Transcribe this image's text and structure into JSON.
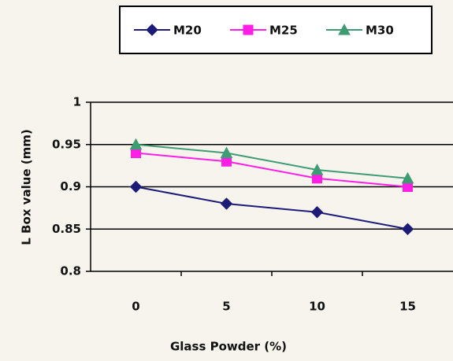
{
  "chart_data": {
    "type": "line",
    "x_label": "Glass Powder (%)",
    "y_label": "L Box value (mm)",
    "categories": [
      "0",
      "5",
      "10",
      "15"
    ],
    "series": [
      {
        "name": "M20",
        "color": "#1c1c78",
        "marker": "diamond",
        "values": [
          0.9,
          0.88,
          0.87,
          0.85
        ]
      },
      {
        "name": "M25",
        "color": "#ff1ee6",
        "marker": "square",
        "values": [
          0.94,
          0.93,
          0.91,
          0.9
        ]
      },
      {
        "name": "M30",
        "color": "#3f9c72",
        "marker": "triangle",
        "values": [
          0.95,
          0.94,
          0.92,
          0.91
        ]
      }
    ],
    "ylim": [
      0.8,
      1
    ],
    "yticks": [
      0.8,
      0.85,
      0.9,
      0.95,
      1
    ],
    "grid": true,
    "legend": "top"
  }
}
